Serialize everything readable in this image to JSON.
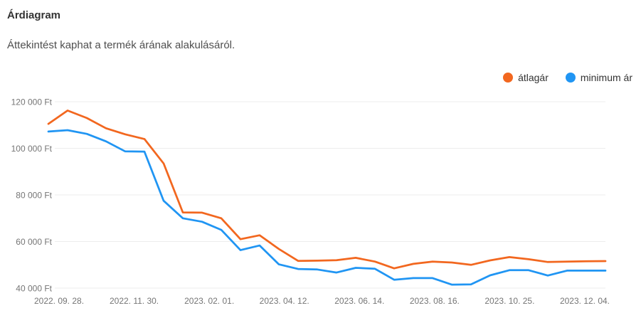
{
  "header": {
    "title": "Árdiagram",
    "subtitle": "Áttekintést kaphat a termék árának alakulásáról."
  },
  "legend": {
    "items": [
      {
        "label": "átlagár",
        "color": "#f2671f"
      },
      {
        "label": "minimum ár",
        "color": "#2095f3"
      }
    ]
  },
  "colors": {
    "avg_line": "#f2671f",
    "min_line": "#2095f3",
    "grid": "#ededed",
    "axis_text": "#757575",
    "title_text": "#333333"
  },
  "chart_data": {
    "type": "line",
    "title": "Árdiagram",
    "xlabel": "",
    "ylabel": "",
    "grid": "horizontal",
    "legend_position": "top-right",
    "ylim": [
      40000,
      120000
    ],
    "y_ticks": [
      {
        "value": 120000,
        "label": "120 000 Ft"
      },
      {
        "value": 100000,
        "label": "100 000 Ft"
      },
      {
        "value": 80000,
        "label": "80 000 Ft"
      },
      {
        "value": 60000,
        "label": "60 000 Ft"
      },
      {
        "value": 40000,
        "label": "40 000 Ft"
      }
    ],
    "x_tick_labels": [
      "2022. 09. 28.",
      "2022. 11. 30.",
      "2023. 02. 01.",
      "2023. 04. 12.",
      "2023. 06. 14.",
      "2023. 08. 16.",
      "2023. 10. 25.",
      "2023. 12. 04."
    ],
    "series": [
      {
        "name": "átlagár",
        "color": "#f2671f",
        "values": [
          110500,
          116200,
          113000,
          108600,
          106000,
          104000,
          93500,
          72500,
          72400,
          70000,
          61000,
          62700,
          56800,
          51700,
          51800,
          52000,
          53000,
          51400,
          48500,
          50400,
          51400,
          51000,
          50000,
          51900,
          53300,
          52400,
          51200,
          51400,
          51500,
          51600
        ]
      },
      {
        "name": "minimum ár",
        "color": "#2095f3",
        "values": [
          107200,
          107800,
          106200,
          103000,
          98700,
          98600,
          77500,
          70000,
          68500,
          65000,
          56300,
          58300,
          50200,
          48200,
          48000,
          46700,
          48700,
          48300,
          43600,
          44300,
          44300,
          41500,
          41600,
          45500,
          47700,
          47700,
          45400,
          47500,
          47500,
          47500
        ]
      }
    ]
  }
}
